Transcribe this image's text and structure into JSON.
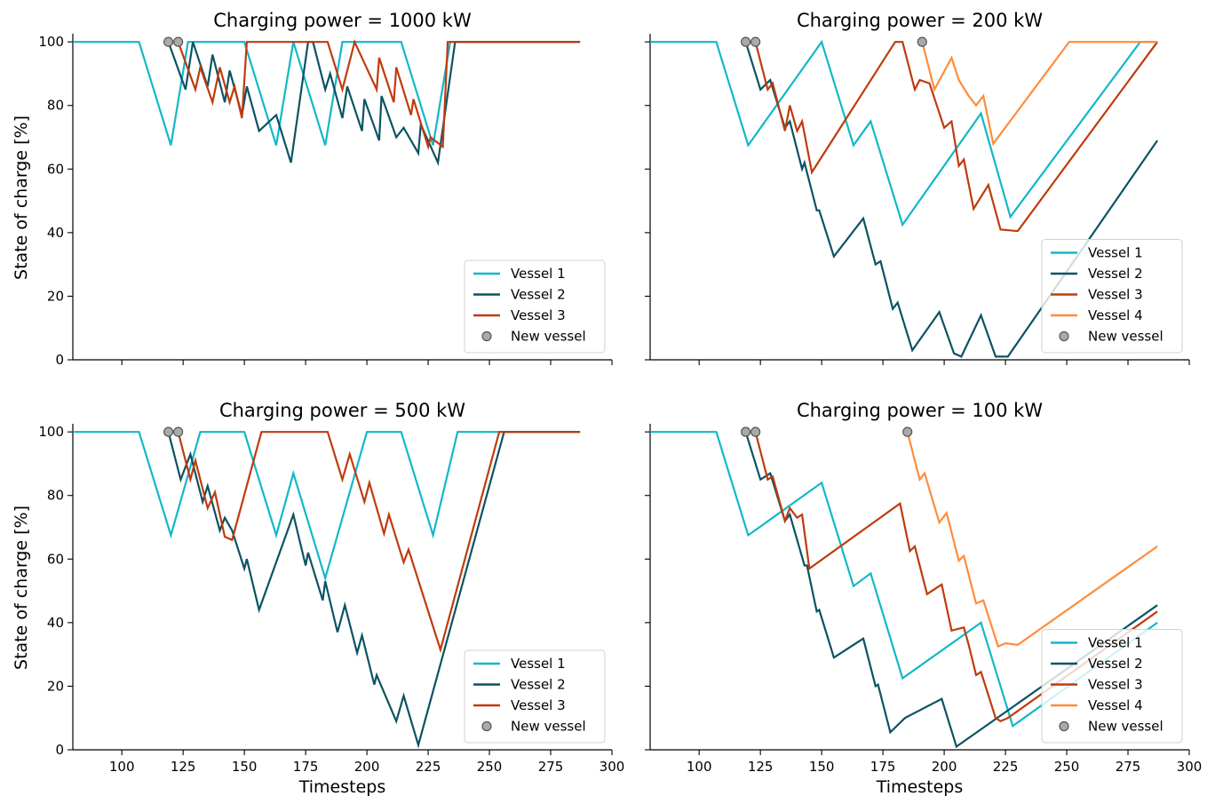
{
  "colors": {
    "Vessel 1": "#12b8c8",
    "Vessel 2": "#0b5363",
    "Vessel 3": "#bf3b0d",
    "Vessel 4": "#ff8c3a",
    "marker_fill": "#aaaaaa",
    "marker_edge": "#555555"
  },
  "chart_data": [
    {
      "type": "line",
      "title": "Charging power = 1000 kW",
      "xlabel": "",
      "ylabel": "State of charge [%]",
      "xlim": [
        80,
        300
      ],
      "ylim": [
        0,
        102
      ],
      "xticks": [
        100,
        125,
        150,
        175,
        200,
        225,
        250,
        275,
        300
      ],
      "yticks": [
        0,
        20,
        40,
        60,
        80,
        100
      ],
      "show_xticklabels": false,
      "show_yticklabels": true,
      "legend_position": "lower-right",
      "legend_marker_label": "New vessel",
      "series": [
        {
          "name": "Vessel 1",
          "x": [
            80,
            107,
            120,
            127,
            150,
            163,
            170,
            183,
            190,
            214,
            227,
            234,
            287
          ],
          "y": [
            100,
            100,
            67.5,
            100,
            100,
            67.5,
            100,
            67.5,
            100,
            100,
            67.5,
            100,
            100
          ]
        },
        {
          "name": "Vessel 2",
          "x": [
            119,
            126,
            129,
            135,
            137,
            142,
            144,
            149,
            151,
            156,
            163,
            169,
            176,
            178,
            183,
            185,
            190,
            192,
            198,
            199,
            205,
            206,
            212,
            215,
            221,
            222,
            229,
            236,
            287
          ],
          "y": [
            100,
            85,
            100,
            86,
            96,
            81,
            91,
            77,
            86,
            72,
            77,
            62,
            100,
            100,
            85,
            90,
            76,
            86,
            72,
            82,
            69,
            83,
            70,
            73,
            65,
            74,
            62,
            100,
            100
          ]
        },
        {
          "name": "Vessel 3",
          "x": [
            123,
            130,
            132,
            137,
            140,
            144,
            146,
            149,
            151,
            155,
            157,
            165,
            184,
            190,
            195,
            204,
            205,
            211,
            212,
            218,
            219,
            225,
            226,
            231,
            233,
            237,
            287
          ],
          "y": [
            100,
            85,
            92,
            81,
            92,
            81,
            86,
            76,
            100,
            100,
            100,
            100,
            100,
            85,
            100,
            85,
            95,
            81,
            92,
            77,
            82,
            67,
            70,
            67,
            100,
            100,
            100
          ]
        }
      ],
      "new_vessel_markers": [
        {
          "x": 119,
          "y": 100
        },
        {
          "x": 123,
          "y": 100
        }
      ]
    },
    {
      "type": "line",
      "title": "Charging power = 200 kW",
      "xlabel": "",
      "ylabel": "",
      "xlim": [
        80,
        300
      ],
      "ylim": [
        0,
        102
      ],
      "xticks": [
        100,
        125,
        150,
        175,
        200,
        225,
        250,
        275,
        300
      ],
      "yticks": [
        0,
        20,
        40,
        60,
        80,
        100
      ],
      "show_xticklabels": false,
      "show_yticklabels": false,
      "legend_position": "lower-right",
      "legend_marker_label": "New vessel",
      "series": [
        {
          "name": "Vessel 1",
          "x": [
            80,
            107,
            120,
            150,
            163,
            170,
            183,
            215,
            227,
            280,
            287
          ],
          "y": [
            100,
            100,
            67.5,
            100,
            67.5,
            75,
            42.5,
            77.5,
            45,
            100,
            100
          ]
        },
        {
          "name": "Vessel 2",
          "x": [
            119,
            125,
            129,
            135,
            137,
            142,
            143,
            148,
            149,
            155,
            167,
            172,
            174,
            179,
            181,
            187,
            198,
            204,
            207,
            215,
            221,
            226,
            287
          ],
          "y": [
            100,
            85,
            88,
            73,
            75,
            60,
            62,
            47,
            47,
            32.5,
            44.5,
            30,
            31,
            16,
            18,
            3,
            15,
            2,
            1,
            14,
            1,
            1,
            69
          ]
        },
        {
          "name": "Vessel 3",
          "x": [
            123,
            128,
            130,
            135,
            137,
            140,
            142,
            146,
            180,
            183,
            188,
            190,
            194,
            200,
            203,
            206,
            208,
            212,
            218,
            223,
            230,
            287
          ],
          "y": [
            100,
            85,
            87,
            72,
            80,
            72,
            75,
            59,
            100,
            100,
            85,
            88,
            87,
            73,
            75,
            61,
            63,
            47.5,
            55,
            41,
            40.5,
            100
          ]
        },
        {
          "name": "Vessel 4",
          "x": [
            191,
            196,
            203,
            206,
            210,
            213,
            216,
            220,
            251,
            287
          ],
          "y": [
            100,
            85,
            95,
            88,
            83,
            80,
            83,
            68,
            100,
            100
          ]
        }
      ],
      "new_vessel_markers": [
        {
          "x": 119,
          "y": 100
        },
        {
          "x": 123,
          "y": 100
        },
        {
          "x": 191,
          "y": 100
        }
      ]
    },
    {
      "type": "line",
      "title": "Charging power = 500 kW",
      "xlabel": "Timesteps",
      "ylabel": "State of charge [%]",
      "xlim": [
        80,
        300
      ],
      "ylim": [
        0,
        102
      ],
      "xticks": [
        100,
        125,
        150,
        175,
        200,
        225,
        250,
        275,
        300
      ],
      "yticks": [
        0,
        20,
        40,
        60,
        80,
        100
      ],
      "show_xticklabels": true,
      "show_yticklabels": true,
      "legend_position": "lower-right",
      "legend_marker_label": "New vessel",
      "series": [
        {
          "name": "Vessel 1",
          "x": [
            80,
            107,
            120,
            132,
            150,
            163,
            170,
            183,
            200,
            214,
            227,
            237,
            287
          ],
          "y": [
            100,
            100,
            67.5,
            100,
            100,
            67.5,
            87,
            54,
            100,
            100,
            67.5,
            100,
            100
          ]
        },
        {
          "name": "Vessel 2",
          "x": [
            119,
            124,
            128,
            133,
            135,
            140,
            142,
            145,
            150,
            151,
            156,
            170,
            175,
            176,
            182,
            183,
            188,
            191,
            196,
            198,
            203,
            204,
            212,
            215,
            221,
            256,
            287
          ],
          "y": [
            100,
            85,
            93,
            78,
            83,
            69,
            73,
            69,
            57,
            60,
            44,
            74,
            58,
            62,
            47,
            53,
            37,
            45.5,
            30.5,
            36,
            20.5,
            23.5,
            9,
            17,
            1.5,
            100,
            100
          ]
        },
        {
          "name": "Vessel 3",
          "x": [
            123,
            128,
            130,
            135,
            138,
            142,
            145,
            152,
            157,
            170,
            184,
            190,
            193,
            199,
            201,
            207,
            209,
            215,
            217,
            230,
            254,
            287
          ],
          "y": [
            100,
            85,
            91,
            76,
            81,
            67,
            66,
            86,
            100,
            100,
            100,
            85,
            93,
            78,
            84,
            68,
            74,
            59,
            63,
            31.5,
            100,
            100
          ]
        }
      ],
      "new_vessel_markers": [
        {
          "x": 119,
          "y": 100
        },
        {
          "x": 123,
          "y": 100
        }
      ]
    },
    {
      "type": "line",
      "title": "Charging power = 100 kW",
      "xlabel": "Timesteps",
      "ylabel": "",
      "xlim": [
        80,
        300
      ],
      "ylim": [
        0,
        102
      ],
      "xticks": [
        100,
        125,
        150,
        175,
        200,
        225,
        250,
        275,
        300
      ],
      "yticks": [
        0,
        20,
        40,
        60,
        80,
        100
      ],
      "show_xticklabels": true,
      "show_yticklabels": false,
      "legend_position": "lower-right",
      "legend_marker_label": "New vessel",
      "series": [
        {
          "name": "Vessel 1",
          "x": [
            80,
            107,
            120,
            150,
            163,
            170,
            183,
            215,
            228,
            287
          ],
          "y": [
            100,
            100,
            67.5,
            84,
            51.5,
            55.5,
            22.5,
            40,
            7.5,
            40
          ]
        },
        {
          "name": "Vessel 2",
          "x": [
            119,
            125,
            129,
            135,
            137,
            143,
            144,
            148,
            149,
            155,
            167,
            172,
            173,
            178,
            184,
            199,
            205,
            287
          ],
          "y": [
            100,
            85,
            87,
            72,
            74,
            58,
            58,
            43.5,
            44,
            29,
            35,
            20,
            20.5,
            5.5,
            10,
            16,
            1,
            45.5
          ]
        },
        {
          "name": "Vessel 3",
          "x": [
            123,
            128,
            130,
            135,
            137,
            140,
            142,
            145,
            182,
            186,
            188,
            193,
            199,
            203,
            208,
            210,
            213,
            215,
            221,
            223,
            226,
            287
          ],
          "y": [
            100,
            85,
            86,
            72,
            76,
            73,
            74,
            57,
            77.5,
            62.5,
            64,
            49,
            52,
            37.5,
            38.5,
            33,
            23.5,
            24.5,
            10,
            9,
            10,
            43.5
          ]
        },
        {
          "name": "Vessel 4",
          "x": [
            185,
            190,
            192,
            198,
            201,
            206,
            208,
            213,
            216,
            222,
            225,
            230,
            287
          ],
          "y": [
            100,
            85,
            87,
            71.5,
            74.5,
            59.5,
            61,
            46,
            47,
            32.5,
            33.5,
            33,
            64
          ]
        }
      ],
      "new_vessel_markers": [
        {
          "x": 119,
          "y": 100
        },
        {
          "x": 123,
          "y": 100
        },
        {
          "x": 185,
          "y": 100
        }
      ]
    }
  ]
}
